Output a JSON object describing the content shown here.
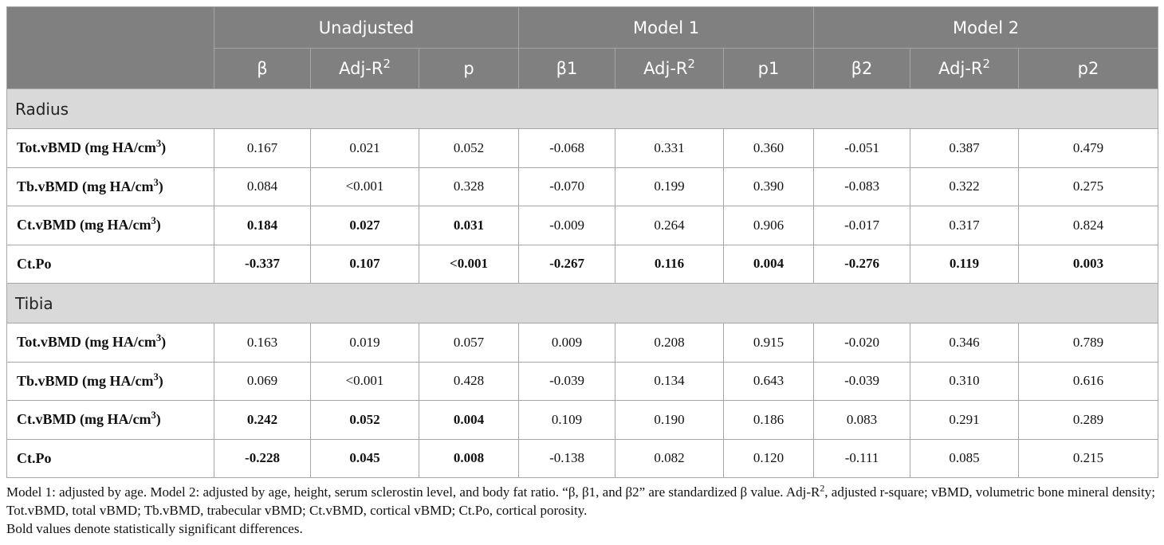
{
  "table": {
    "groups": [
      "Unadjusted",
      "Model 1",
      "Model 2"
    ],
    "subheaders": [
      {
        "text": "β",
        "sup": ""
      },
      {
        "text": "Adj-R",
        "sup": "2"
      },
      {
        "text": "p",
        "sup": ""
      },
      {
        "text": "β1",
        "sup": ""
      },
      {
        "text": "Adj-R",
        "sup": "2"
      },
      {
        "text": "p1",
        "sup": ""
      },
      {
        "text": "β2",
        "sup": ""
      },
      {
        "text": "Adj-R",
        "sup": "2"
      },
      {
        "text": "p2",
        "sup": ""
      }
    ],
    "sections": [
      {
        "name": "Radius",
        "rows": [
          {
            "label": "Tot.vBMD (mg HA/cm",
            "label_sup": "3",
            "label_end": ")",
            "cells": [
              {
                "v": "0.167",
                "b": false
              },
              {
                "v": "0.021",
                "b": false
              },
              {
                "v": "0.052",
                "b": false
              },
              {
                "v": "-0.068",
                "b": false
              },
              {
                "v": "0.331",
                "b": false
              },
              {
                "v": "0.360",
                "b": false
              },
              {
                "v": "-0.051",
                "b": false
              },
              {
                "v": "0.387",
                "b": false
              },
              {
                "v": "0.479",
                "b": false
              }
            ]
          },
          {
            "label": "Tb.vBMD (mg HA/cm",
            "label_sup": "3",
            "label_end": ")",
            "cells": [
              {
                "v": "0.084",
                "b": false
              },
              {
                "v": "<0.001",
                "b": false
              },
              {
                "v": "0.328",
                "b": false
              },
              {
                "v": "-0.070",
                "b": false
              },
              {
                "v": "0.199",
                "b": false
              },
              {
                "v": "0.390",
                "b": false
              },
              {
                "v": "-0.083",
                "b": false
              },
              {
                "v": "0.322",
                "b": false
              },
              {
                "v": "0.275",
                "b": false
              }
            ]
          },
          {
            "label": "Ct.vBMD (mg HA/cm",
            "label_sup": "3",
            "label_end": ")",
            "cells": [
              {
                "v": "0.184",
                "b": true
              },
              {
                "v": "0.027",
                "b": true
              },
              {
                "v": "0.031",
                "b": true
              },
              {
                "v": "-0.009",
                "b": false
              },
              {
                "v": "0.264",
                "b": false
              },
              {
                "v": "0.906",
                "b": false
              },
              {
                "v": "-0.017",
                "b": false
              },
              {
                "v": "0.317",
                "b": false
              },
              {
                "v": "0.824",
                "b": false
              }
            ]
          },
          {
            "label": "Ct.Po",
            "label_sup": "",
            "label_end": "",
            "cells": [
              {
                "v": "-0.337",
                "b": true
              },
              {
                "v": "0.107",
                "b": true
              },
              {
                "v": "<0.001",
                "b": true
              },
              {
                "v": "-0.267",
                "b": true
              },
              {
                "v": "0.116",
                "b": true
              },
              {
                "v": "0.004",
                "b": true
              },
              {
                "v": "-0.276",
                "b": true
              },
              {
                "v": "0.119",
                "b": true
              },
              {
                "v": "0.003",
                "b": true
              }
            ]
          }
        ]
      },
      {
        "name": "Tibia",
        "rows": [
          {
            "label": "Tot.vBMD (mg HA/cm",
            "label_sup": "3",
            "label_end": ")",
            "cells": [
              {
                "v": "0.163",
                "b": false
              },
              {
                "v": "0.019",
                "b": false
              },
              {
                "v": "0.057",
                "b": false
              },
              {
                "v": "0.009",
                "b": false
              },
              {
                "v": "0.208",
                "b": false
              },
              {
                "v": "0.915",
                "b": false
              },
              {
                "v": "-0.020",
                "b": false
              },
              {
                "v": "0.346",
                "b": false
              },
              {
                "v": "0.789",
                "b": false
              }
            ]
          },
          {
            "label": "Tb.vBMD (mg HA/cm",
            "label_sup": "3",
            "label_end": ")",
            "cells": [
              {
                "v": "0.069",
                "b": false
              },
              {
                "v": "<0.001",
                "b": false
              },
              {
                "v": "0.428",
                "b": false
              },
              {
                "v": "-0.039",
                "b": false
              },
              {
                "v": "0.134",
                "b": false
              },
              {
                "v": "0.643",
                "b": false
              },
              {
                "v": "-0.039",
                "b": false
              },
              {
                "v": "0.310",
                "b": false
              },
              {
                "v": "0.616",
                "b": false
              }
            ]
          },
          {
            "label": "Ct.vBMD (mg HA/cm",
            "label_sup": "3",
            "label_end": ")",
            "cells": [
              {
                "v": "0.242",
                "b": true
              },
              {
                "v": "0.052",
                "b": true
              },
              {
                "v": "0.004",
                "b": true
              },
              {
                "v": "0.109",
                "b": false
              },
              {
                "v": "0.190",
                "b": false
              },
              {
                "v": "0.186",
                "b": false
              },
              {
                "v": "0.083",
                "b": false
              },
              {
                "v": "0.291",
                "b": false
              },
              {
                "v": "0.289",
                "b": false
              }
            ]
          },
          {
            "label": "Ct.Po",
            "label_sup": "",
            "label_end": "",
            "cells": [
              {
                "v": "-0.228",
                "b": true
              },
              {
                "v": "0.045",
                "b": true
              },
              {
                "v": "0.008",
                "b": true
              },
              {
                "v": "-0.138",
                "b": false
              },
              {
                "v": "0.082",
                "b": false
              },
              {
                "v": "0.120",
                "b": false
              },
              {
                "v": "-0.111",
                "b": false
              },
              {
                "v": "0.085",
                "b": false
              },
              {
                "v": "0.215",
                "b": false
              }
            ]
          }
        ]
      }
    ]
  },
  "footnote": {
    "line1_pre": "Model 1: adjusted by age. Model 2: adjusted by age, height, serum sclerostin level, and body fat ratio. “β, β1, and β2” are standardized β value. Adj-R",
    "line1_sup": "2",
    "line1_post": ", adjusted r-square; vBMD, volumetric bone mineral density; Tot.vBMD, total vBMD; Tb.vBMD, trabecular vBMD; Ct.vBMD, cortical vBMD; Ct.Po, cortical porosity.",
    "line2": "Bold values denote statistically significant differences."
  }
}
